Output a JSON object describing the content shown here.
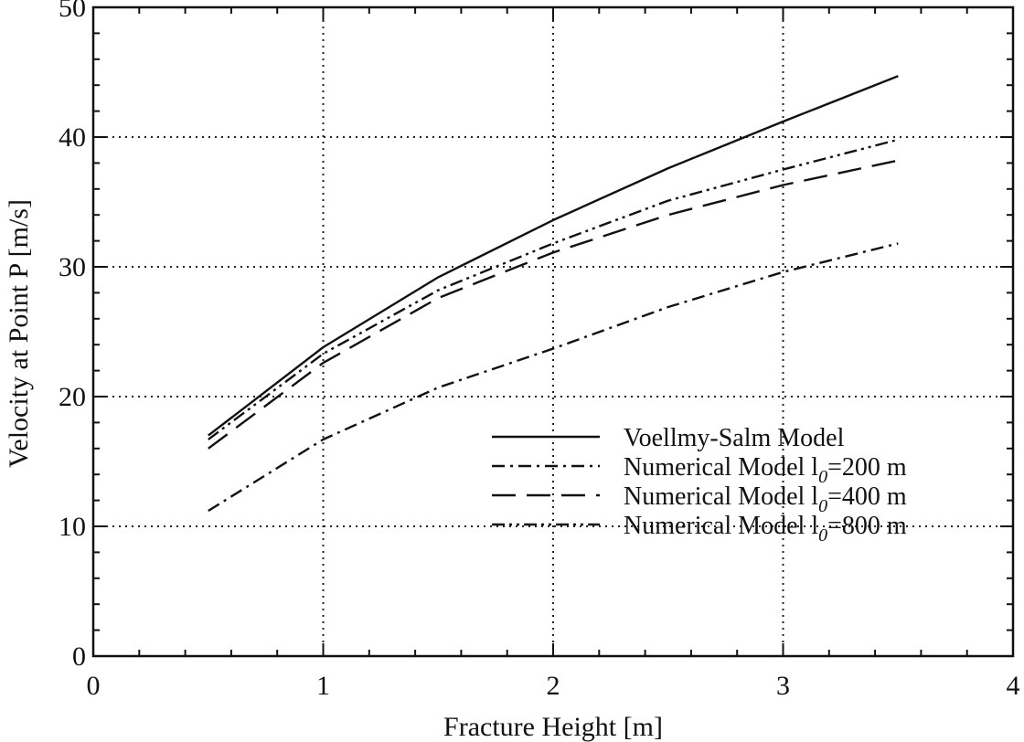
{
  "chart_data": {
    "type": "line",
    "title": "",
    "xlabel": "Fracture Height [m]",
    "ylabel": "Velocity at Point P [m/s]",
    "xlim": [
      0,
      4
    ],
    "ylim": [
      0,
      50
    ],
    "x_ticks": [
      "0",
      "1",
      "2",
      "3",
      "4"
    ],
    "y_ticks": [
      "0",
      "10",
      "20",
      "30",
      "40",
      "50"
    ],
    "grid": "dotted",
    "legend_position": "lower-right",
    "series": [
      {
        "name": "Voellmy-Salm Model",
        "style": "solid",
        "x": [
          0.5,
          1.0,
          1.5,
          2.0,
          2.5,
          3.0,
          3.5
        ],
        "y": [
          17.0,
          23.8,
          29.2,
          33.6,
          37.6,
          41.2,
          44.7
        ]
      },
      {
        "name": "Numerical Model l0=200 m",
        "style": "dash-dot",
        "x": [
          0.5,
          1.0,
          1.5,
          2.0,
          2.5,
          3.0,
          3.5
        ],
        "y": [
          11.2,
          16.7,
          20.7,
          23.7,
          26.9,
          29.6,
          31.8
        ]
      },
      {
        "name": "Numerical Model l0=400 m",
        "style": "long-dash",
        "x": [
          0.5,
          1.0,
          1.5,
          2.0,
          2.5,
          3.0,
          3.5
        ],
        "y": [
          16.0,
          22.6,
          27.6,
          31.1,
          34.0,
          36.3,
          38.2
        ]
      },
      {
        "name": "Numerical Model l0=800 m",
        "style": "dash-dot-dot",
        "x": [
          0.5,
          1.0,
          1.5,
          2.0,
          2.5,
          3.0,
          3.5
        ],
        "y": [
          16.7,
          23.3,
          28.2,
          31.8,
          35.1,
          37.5,
          39.8
        ]
      }
    ],
    "legend": [
      {
        "prefix": "Voellmy-Salm Model",
        "sub": "",
        "suffix": ""
      },
      {
        "prefix": "Numerical Model l",
        "sub": "0",
        "suffix": "=200 m"
      },
      {
        "prefix": "Numerical Model l",
        "sub": "0",
        "suffix": "=400 m"
      },
      {
        "prefix": "Numerical Model l",
        "sub": "0",
        "suffix": "=800 m"
      }
    ]
  }
}
